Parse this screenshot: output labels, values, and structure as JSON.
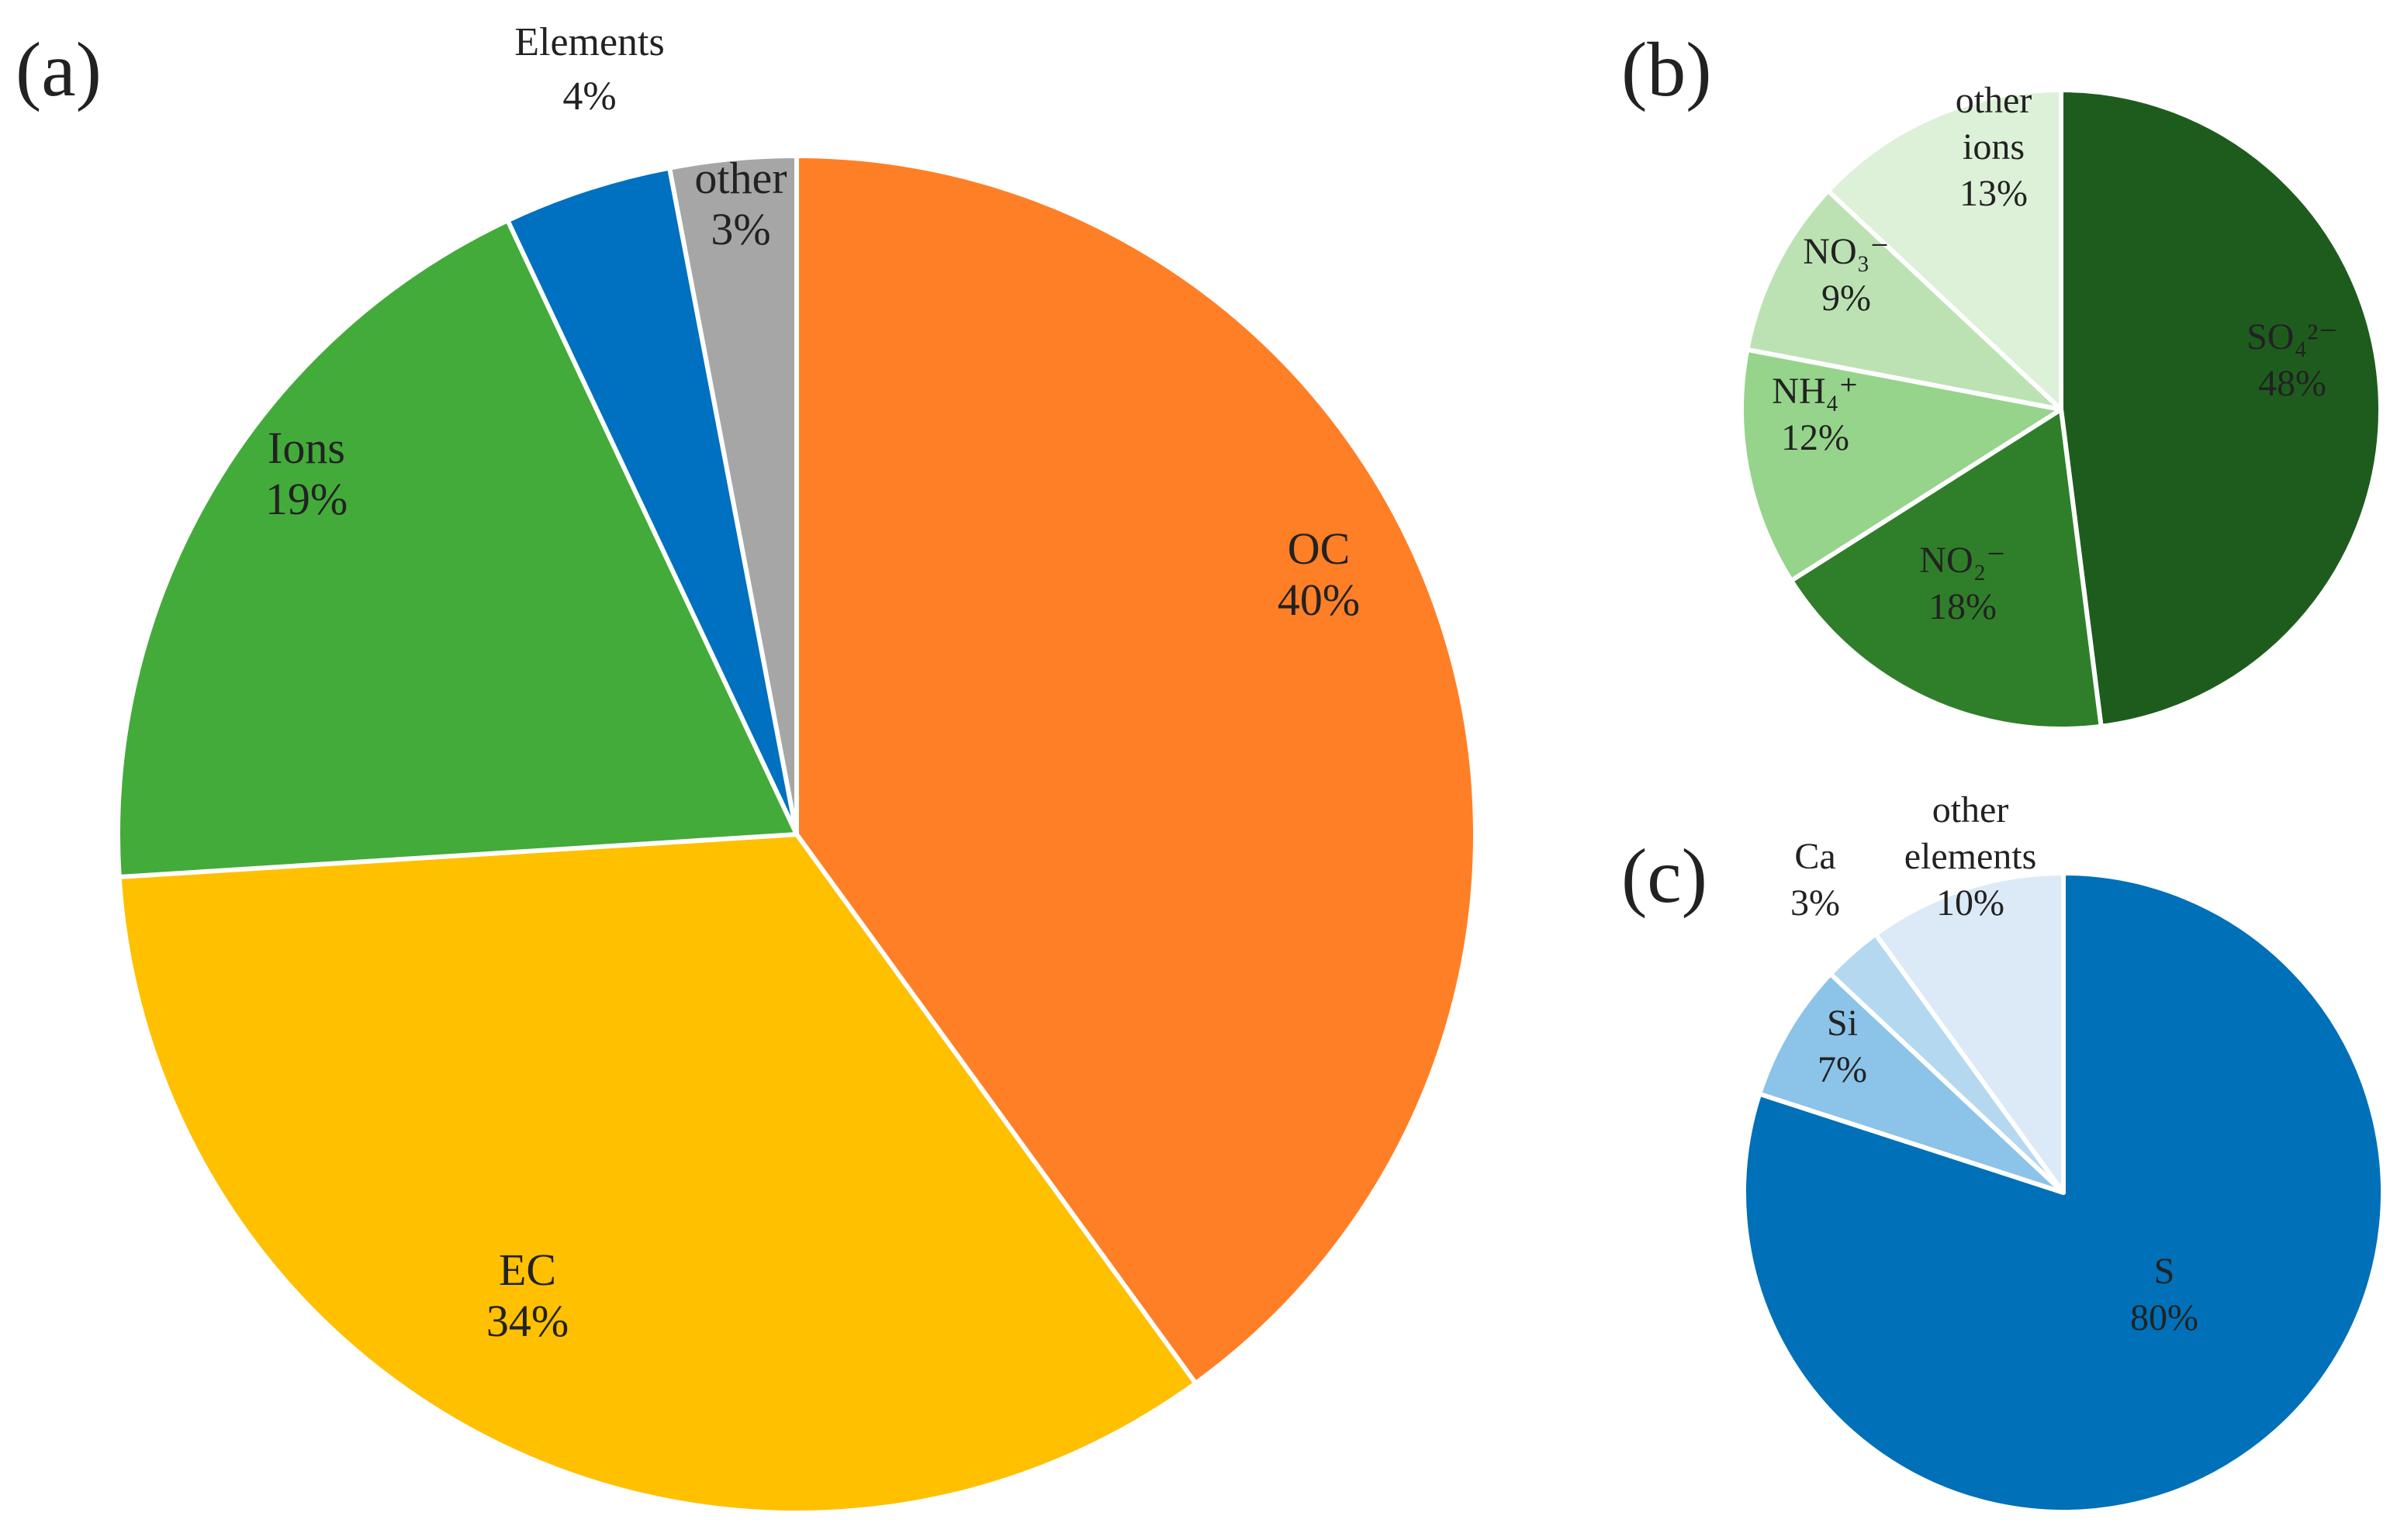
{
  "panels": {
    "a": {
      "letter": "(a)"
    },
    "b": {
      "letter": "(b)"
    },
    "c": {
      "letter": "(c)"
    }
  },
  "chart_data": [
    {
      "id": "a",
      "type": "pie",
      "title": "(a)",
      "start_angle_deg": 0,
      "direction": "clockwise",
      "slices": [
        {
          "key": "oc",
          "lines": [
            "OC",
            "40%"
          ],
          "value": 40,
          "color": "#FF7F27"
        },
        {
          "key": "ec",
          "lines": [
            "EC",
            "34%"
          ],
          "value": 34,
          "color": "#FFC000"
        },
        {
          "key": "ions",
          "lines": [
            "Ions",
            "19%"
          ],
          "value": 19,
          "color": "#43AB3A"
        },
        {
          "key": "elements",
          "lines": [
            "Elements",
            "4%"
          ],
          "value": 4,
          "color": "#0070C0"
        },
        {
          "key": "other",
          "lines": [
            "other",
            "3%"
          ],
          "value": 3,
          "color": "#A6A6A6"
        }
      ]
    },
    {
      "id": "b",
      "type": "pie",
      "title": "(b)",
      "start_angle_deg": 0,
      "direction": "clockwise",
      "slices": [
        {
          "key": "so4",
          "lines": [
            "SO₄²⁻",
            "48%"
          ],
          "value": 48,
          "color": "#1E5C1E"
        },
        {
          "key": "no2",
          "lines": [
            "NO₂⁻",
            "18%"
          ],
          "value": 18,
          "color": "#2F7F2A"
        },
        {
          "key": "nh4",
          "lines": [
            "NH₄⁺",
            "12%"
          ],
          "value": 12,
          "color": "#96D48C"
        },
        {
          "key": "no3",
          "lines": [
            "NO₃⁻",
            "9%"
          ],
          "value": 9,
          "color": "#BCE2B4"
        },
        {
          "key": "other-ions",
          "lines": [
            "other",
            "ions",
            "13%"
          ],
          "value": 13,
          "color": "#DDF0D8"
        }
      ]
    },
    {
      "id": "c",
      "type": "pie",
      "title": "(c)",
      "start_angle_deg": 0,
      "direction": "clockwise",
      "slices": [
        {
          "key": "s",
          "lines": [
            "S",
            "80%"
          ],
          "value": 80,
          "color": "#0070B8"
        },
        {
          "key": "si",
          "lines": [
            "Si",
            "7%"
          ],
          "value": 7,
          "color": "#8CC3E8"
        },
        {
          "key": "ca",
          "lines": [
            "Ca",
            "3%"
          ],
          "value": 3,
          "color": "#B4D8F0"
        },
        {
          "key": "other-elements",
          "lines": [
            "other",
            "elements",
            "10%"
          ],
          "value": 10,
          "color": "#DCEAF7"
        }
      ]
    }
  ]
}
